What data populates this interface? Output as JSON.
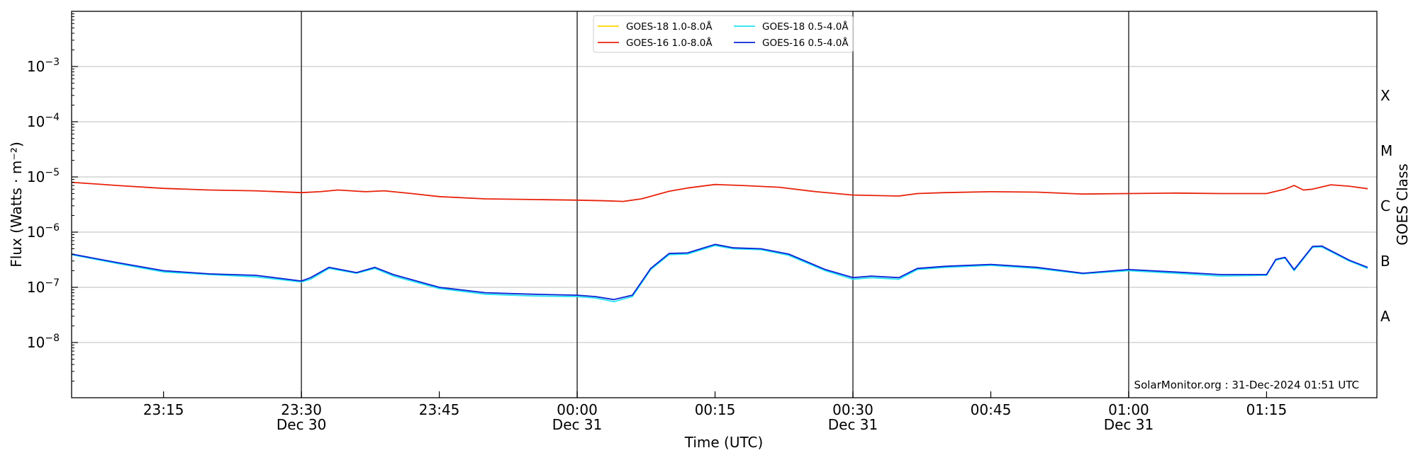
{
  "chart_data": {
    "type": "line",
    "title": "",
    "xlabel": "Time (UTC)",
    "ylabel": "Flux (Watts · m⁻²)",
    "ylabel_right": "GOES Class",
    "yscale": "log",
    "ylim": [
      1e-09,
      0.01
    ],
    "xlim": [
      "2024-12-30 23:05",
      "2024-12-31 01:27"
    ],
    "grid": "horizontal major",
    "legend_position": "top-center",
    "credit": "SolarMonitor.org : 31-Dec-2024 01:51 UTC",
    "y_ticks": [
      {
        "value": 1e-08,
        "base": "10",
        "exp": "−8"
      },
      {
        "value": 1e-07,
        "base": "10",
        "exp": "−7"
      },
      {
        "value": 1e-06,
        "base": "10",
        "exp": "−6"
      },
      {
        "value": 1e-05,
        "base": "10",
        "exp": "−5"
      },
      {
        "value": 0.0001,
        "base": "10",
        "exp": "−4"
      },
      {
        "value": 0.001,
        "base": "10",
        "exp": "−3"
      }
    ],
    "x_ticks": [
      {
        "time": "2024-12-30 23:15",
        "label": "23:15",
        "sub": ""
      },
      {
        "time": "2024-12-30 23:30",
        "label": "23:30",
        "sub": "Dec 30"
      },
      {
        "time": "2024-12-30 23:45",
        "label": "23:45",
        "sub": ""
      },
      {
        "time": "2024-12-31 00:00",
        "label": "00:00",
        "sub": "Dec 31"
      },
      {
        "time": "2024-12-31 00:15",
        "label": "00:15",
        "sub": ""
      },
      {
        "time": "2024-12-31 00:30",
        "label": "00:30",
        "sub": "Dec 31"
      },
      {
        "time": "2024-12-31 00:45",
        "label": "00:45",
        "sub": ""
      },
      {
        "time": "2024-12-31 01:00",
        "label": "01:00",
        "sub": "Dec 31"
      },
      {
        "time": "2024-12-31 01:15",
        "label": "01:15",
        "sub": ""
      }
    ],
    "vertical_lines": [
      "2024-12-30 23:30",
      "2024-12-31 00:00",
      "2024-12-31 00:30",
      "2024-12-31 01:00"
    ],
    "goes_classes": [
      {
        "label": "A",
        "value": 3e-08
      },
      {
        "label": "B",
        "value": 3e-07
      },
      {
        "label": "C",
        "value": 3e-06
      },
      {
        "label": "M",
        "value": 3e-05
      },
      {
        "label": "X",
        "value": 0.0003
      }
    ],
    "legend": [
      {
        "name": "GOES-18 1.0-8.0Å",
        "color": "#ffd500"
      },
      {
        "name": "GOES-16 1.0-8.0Å",
        "color": "#e8230b"
      },
      {
        "name": "GOES-18 0.5-4.0Å",
        "color": "#22e3f2"
      },
      {
        "name": "GOES-16 0.5-4.0Å",
        "color": "#0b22d6"
      }
    ],
    "series": [
      {
        "name": "GOES-16 1.0-8.0Å",
        "color": "#e8230b",
        "points": [
          [
            "2024-12-30 23:05",
            8e-06
          ],
          [
            "2024-12-30 23:10",
            7e-06
          ],
          [
            "2024-12-30 23:15",
            6.2e-06
          ],
          [
            "2024-12-30 23:20",
            5.8e-06
          ],
          [
            "2024-12-30 23:25",
            5.6e-06
          ],
          [
            "2024-12-30 23:30",
            5.2e-06
          ],
          [
            "2024-12-30 23:32",
            5.4e-06
          ],
          [
            "2024-12-30 23:34",
            5.8e-06
          ],
          [
            "2024-12-30 23:37",
            5.4e-06
          ],
          [
            "2024-12-30 23:39",
            5.6e-06
          ],
          [
            "2024-12-30 23:42",
            5e-06
          ],
          [
            "2024-12-30 23:45",
            4.4e-06
          ],
          [
            "2024-12-30 23:50",
            4e-06
          ],
          [
            "2024-12-30 23:55",
            3.9e-06
          ],
          [
            "2024-12-31 00:00",
            3.8e-06
          ],
          [
            "2024-12-31 00:03",
            3.7e-06
          ],
          [
            "2024-12-31 00:05",
            3.6e-06
          ],
          [
            "2024-12-31 00:07",
            4e-06
          ],
          [
            "2024-12-31 00:10",
            5.5e-06
          ],
          [
            "2024-12-31 00:12",
            6.3e-06
          ],
          [
            "2024-12-31 00:15",
            7.3e-06
          ],
          [
            "2024-12-31 00:18",
            7e-06
          ],
          [
            "2024-12-31 00:22",
            6.5e-06
          ],
          [
            "2024-12-31 00:26",
            5.4e-06
          ],
          [
            "2024-12-31 00:30",
            4.7e-06
          ],
          [
            "2024-12-31 00:35",
            4.5e-06
          ],
          [
            "2024-12-31 00:37",
            5e-06
          ],
          [
            "2024-12-31 00:40",
            5.2e-06
          ],
          [
            "2024-12-31 00:45",
            5.4e-06
          ],
          [
            "2024-12-31 00:50",
            5.3e-06
          ],
          [
            "2024-12-31 00:55",
            4.9e-06
          ],
          [
            "2024-12-31 01:00",
            5e-06
          ],
          [
            "2024-12-31 01:05",
            5.1e-06
          ],
          [
            "2024-12-31 01:10",
            5e-06
          ],
          [
            "2024-12-31 01:15",
            5e-06
          ],
          [
            "2024-12-31 01:17",
            6e-06
          ],
          [
            "2024-12-31 01:18",
            7e-06
          ],
          [
            "2024-12-31 01:19",
            5.8e-06
          ],
          [
            "2024-12-31 01:20",
            6e-06
          ],
          [
            "2024-12-31 01:22",
            7.2e-06
          ],
          [
            "2024-12-31 01:24",
            6.8e-06
          ],
          [
            "2024-12-31 01:26",
            6.1e-06
          ]
        ]
      },
      {
        "name": "GOES-18 0.5-4.0Å",
        "color": "#22e3f2",
        "points": [
          [
            "2024-12-30 23:05",
            3.9e-07
          ],
          [
            "2024-12-30 23:10",
            2.7e-07
          ],
          [
            "2024-12-30 23:15",
            1.9e-07
          ],
          [
            "2024-12-30 23:20",
            1.7e-07
          ],
          [
            "2024-12-30 23:25",
            1.55e-07
          ],
          [
            "2024-12-30 23:30",
            1.25e-07
          ],
          [
            "2024-12-30 23:31",
            1.4e-07
          ],
          [
            "2024-12-30 23:33",
            2.2e-07
          ],
          [
            "2024-12-30 23:36",
            1.8e-07
          ],
          [
            "2024-12-30 23:38",
            2.2e-07
          ],
          [
            "2024-12-30 23:40",
            1.6e-07
          ],
          [
            "2024-12-30 23:45",
            9.5e-08
          ],
          [
            "2024-12-30 23:50",
            7.5e-08
          ],
          [
            "2024-12-30 23:55",
            7e-08
          ],
          [
            "2024-12-31 00:00",
            6.8e-08
          ],
          [
            "2024-12-31 00:02",
            6.4e-08
          ],
          [
            "2024-12-31 00:04",
            5.5e-08
          ],
          [
            "2024-12-31 00:06",
            6.8e-08
          ],
          [
            "2024-12-31 00:08",
            2.1e-07
          ],
          [
            "2024-12-31 00:10",
            3.9e-07
          ],
          [
            "2024-12-31 00:12",
            4e-07
          ],
          [
            "2024-12-31 00:15",
            5.7e-07
          ],
          [
            "2024-12-31 00:17",
            5e-07
          ],
          [
            "2024-12-31 00:20",
            4.8e-07
          ],
          [
            "2024-12-31 00:23",
            3.8e-07
          ],
          [
            "2024-12-31 00:27",
            2e-07
          ],
          [
            "2024-12-31 00:30",
            1.4e-07
          ],
          [
            "2024-12-31 00:32",
            1.5e-07
          ],
          [
            "2024-12-31 00:35",
            1.4e-07
          ],
          [
            "2024-12-31 00:37",
            2.1e-07
          ],
          [
            "2024-12-31 00:40",
            2.3e-07
          ],
          [
            "2024-12-31 00:45",
            2.5e-07
          ],
          [
            "2024-12-31 00:50",
            2.2e-07
          ],
          [
            "2024-12-31 00:55",
            1.75e-07
          ],
          [
            "2024-12-31 01:00",
            2e-07
          ],
          [
            "2024-12-31 01:05",
            1.8e-07
          ],
          [
            "2024-12-31 01:10",
            1.6e-07
          ],
          [
            "2024-12-31 01:15",
            1.65e-07
          ],
          [
            "2024-12-31 01:16",
            3.1e-07
          ],
          [
            "2024-12-31 01:17",
            3.4e-07
          ],
          [
            "2024-12-31 01:18",
            2e-07
          ],
          [
            "2024-12-31 01:20",
            5.3e-07
          ],
          [
            "2024-12-31 01:21",
            5.4e-07
          ],
          [
            "2024-12-31 01:24",
            3e-07
          ],
          [
            "2024-12-31 01:26",
            2.2e-07
          ]
        ]
      },
      {
        "name": "GOES-16 0.5-4.0Å",
        "color": "#0b22d6",
        "points": [
          [
            "2024-12-30 23:05",
            4e-07
          ],
          [
            "2024-12-30 23:10",
            2.8e-07
          ],
          [
            "2024-12-30 23:15",
            2e-07
          ],
          [
            "2024-12-30 23:20",
            1.75e-07
          ],
          [
            "2024-12-30 23:25",
            1.65e-07
          ],
          [
            "2024-12-30 23:30",
            1.3e-07
          ],
          [
            "2024-12-30 23:31",
            1.5e-07
          ],
          [
            "2024-12-30 23:33",
            2.3e-07
          ],
          [
            "2024-12-30 23:36",
            1.85e-07
          ],
          [
            "2024-12-30 23:38",
            2.3e-07
          ],
          [
            "2024-12-30 23:40",
            1.7e-07
          ],
          [
            "2024-12-30 23:45",
            1e-07
          ],
          [
            "2024-12-30 23:50",
            8e-08
          ],
          [
            "2024-12-30 23:55",
            7.5e-08
          ],
          [
            "2024-12-31 00:00",
            7.2e-08
          ],
          [
            "2024-12-31 00:02",
            6.8e-08
          ],
          [
            "2024-12-31 00:04",
            6e-08
          ],
          [
            "2024-12-31 00:06",
            7.2e-08
          ],
          [
            "2024-12-31 00:08",
            2.2e-07
          ],
          [
            "2024-12-31 00:10",
            4.1e-07
          ],
          [
            "2024-12-31 00:12",
            4.2e-07
          ],
          [
            "2024-12-31 00:15",
            6e-07
          ],
          [
            "2024-12-31 00:17",
            5.2e-07
          ],
          [
            "2024-12-31 00:20",
            5e-07
          ],
          [
            "2024-12-31 00:23",
            4e-07
          ],
          [
            "2024-12-31 00:27",
            2.1e-07
          ],
          [
            "2024-12-31 00:30",
            1.5e-07
          ],
          [
            "2024-12-31 00:32",
            1.6e-07
          ],
          [
            "2024-12-31 00:35",
            1.5e-07
          ],
          [
            "2024-12-31 00:37",
            2.2e-07
          ],
          [
            "2024-12-31 00:40",
            2.4e-07
          ],
          [
            "2024-12-31 00:45",
            2.6e-07
          ],
          [
            "2024-12-31 00:50",
            2.3e-07
          ],
          [
            "2024-12-31 00:55",
            1.8e-07
          ],
          [
            "2024-12-31 01:00",
            2.1e-07
          ],
          [
            "2024-12-31 01:05",
            1.9e-07
          ],
          [
            "2024-12-31 01:10",
            1.7e-07
          ],
          [
            "2024-12-31 01:15",
            1.7e-07
          ],
          [
            "2024-12-31 01:16",
            3.2e-07
          ],
          [
            "2024-12-31 01:17",
            3.5e-07
          ],
          [
            "2024-12-31 01:18",
            2.1e-07
          ],
          [
            "2024-12-31 01:20",
            5.5e-07
          ],
          [
            "2024-12-31 01:21",
            5.6e-07
          ],
          [
            "2024-12-31 01:24",
            3.1e-07
          ],
          [
            "2024-12-31 01:26",
            2.3e-07
          ]
        ]
      }
    ]
  }
}
